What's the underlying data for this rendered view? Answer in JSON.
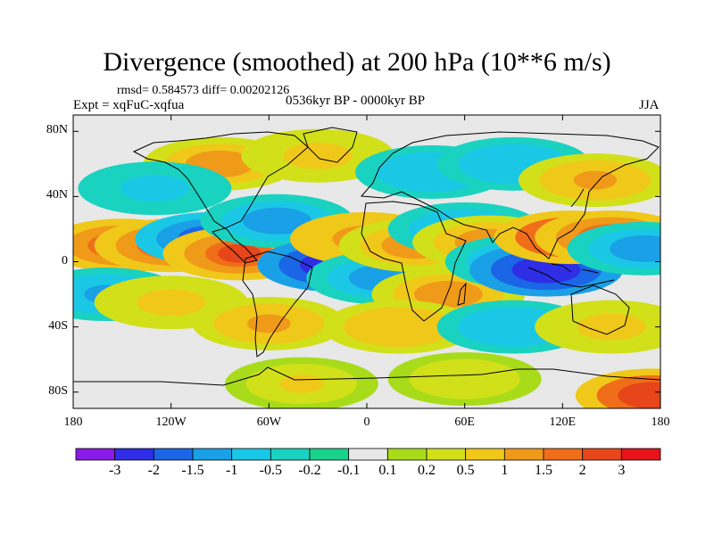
{
  "title": "Divergence (smoothed) at 200 hPa (10**6 m/s)",
  "stats": "rmsd= 0.584573 diff= 0.00202126",
  "experiment": "Expt = xqFuC-xqfua",
  "period": "0536kyr BP - 0000kyr BP",
  "season": "JJA",
  "map_data": {
    "type": "filled-contour-map",
    "projection": "cylindrical-equidistant",
    "lon_range": [
      -180,
      180
    ],
    "lat_range": [
      -90,
      90
    ],
    "lat_ticks": [
      "80N",
      "40N",
      "0",
      "40S",
      "80S"
    ],
    "lon_ticks": [
      "180",
      "120W",
      "60W",
      "0",
      "60E",
      "120E",
      "180"
    ],
    "blobs": [
      {
        "lon": -150,
        "lat": 10,
        "v": 2.2
      },
      {
        "lon": -120,
        "lat": 10,
        "v": 1.8
      },
      {
        "lon": -95,
        "lat": 14,
        "v": -2.2
      },
      {
        "lon": -78,
        "lat": 5,
        "v": 2.0
      },
      {
        "lon": -55,
        "lat": 25,
        "v": -1.2
      },
      {
        "lon": -20,
        "lat": -2,
        "v": -3.0
      },
      {
        "lon": 0,
        "lat": 14,
        "v": 1.6
      },
      {
        "lon": 10,
        "lat": -10,
        "v": -1.2
      },
      {
        "lon": 30,
        "lat": 10,
        "v": 1.4
      },
      {
        "lon": 50,
        "lat": -20,
        "v": 1.2
      },
      {
        "lon": 60,
        "lat": 20,
        "v": -1.0
      },
      {
        "lon": 75,
        "lat": 12,
        "v": 1.3
      },
      {
        "lon": 95,
        "lat": 0,
        "v": -1.4
      },
      {
        "lon": 110,
        "lat": -5,
        "v": -3.0
      },
      {
        "lon": 125,
        "lat": 15,
        "v": 2.5
      },
      {
        "lon": 150,
        "lat": 15,
        "v": 1.8
      },
      {
        "lon": 170,
        "lat": 8,
        "v": -1.3
      },
      {
        "lon": -160,
        "lat": -20,
        "v": -1.1
      },
      {
        "lon": -120,
        "lat": -25,
        "v": 0.8
      },
      {
        "lon": -60,
        "lat": -38,
        "v": 1.0
      },
      {
        "lon": 20,
        "lat": -40,
        "v": 0.9
      },
      {
        "lon": 90,
        "lat": -40,
        "v": -0.9
      },
      {
        "lon": 150,
        "lat": -40,
        "v": 0.8
      },
      {
        "lon": -90,
        "lat": 60,
        "v": 1.2
      },
      {
        "lon": -30,
        "lat": 65,
        "v": 0.8
      },
      {
        "lon": 40,
        "lat": 55,
        "v": -0.9
      },
      {
        "lon": 90,
        "lat": 60,
        "v": -1.0
      },
      {
        "lon": 140,
        "lat": 50,
        "v": 1.0
      },
      {
        "lon": -130,
        "lat": 45,
        "v": -0.8
      },
      {
        "lon": 175,
        "lat": -82,
        "v": 2.5
      },
      {
        "lon": -40,
        "lat": -75,
        "v": 0.5
      },
      {
        "lon": 60,
        "lat": -72,
        "v": 0.4
      }
    ]
  },
  "colorbar": {
    "labels": [
      "-3",
      "-2",
      "-1.5",
      "-1",
      "-0.5",
      "-0.2",
      "-0.1",
      "0.1",
      "0.2",
      "0.5",
      "1",
      "1.5",
      "2",
      "3"
    ],
    "colors": [
      "#8a1ae6",
      "#2e2ee6",
      "#1a66e6",
      "#1aa0e6",
      "#1ac8e6",
      "#1ad2c0",
      "#1ad28a",
      "#e8e8e8",
      "#a8dc1a",
      "#d2e01a",
      "#f0c81a",
      "#f09a1a",
      "#f06e1a",
      "#e6461a",
      "#e6141a"
    ]
  }
}
